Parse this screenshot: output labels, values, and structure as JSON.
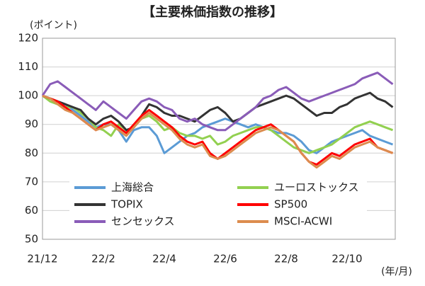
{
  "chart_data": {
    "type": "line",
    "title": "【主要株価指数の推移】",
    "y_label": "(ポイント)",
    "x_label": "(年/月)",
    "categories": [
      "21/12",
      null,
      null,
      null,
      null,
      null,
      null,
      null,
      "22/2",
      null,
      null,
      null,
      null,
      null,
      null,
      null,
      "22/4",
      null,
      null,
      null,
      null,
      null,
      null,
      null,
      "22/6",
      null,
      null,
      null,
      null,
      null,
      null,
      null,
      "22/8",
      null,
      null,
      null,
      null,
      null,
      null,
      null,
      "22/10",
      null,
      null,
      null,
      null,
      null,
      null
    ],
    "ylim": [
      50,
      120
    ],
    "yticks": [
      50,
      60,
      70,
      80,
      90,
      100,
      110,
      120
    ],
    "grid": true,
    "series": [
      {
        "name": "上海総合",
        "color": "#5b9bd5",
        "values": [
          100,
          99,
          98,
          97,
          95,
          93,
          91,
          89,
          90,
          90,
          88,
          84,
          88,
          89,
          89,
          86,
          80,
          82,
          84,
          86,
          87,
          89,
          90,
          91,
          92,
          91,
          90,
          89,
          90,
          89,
          88,
          87,
          87,
          86,
          84,
          81,
          80,
          82,
          84,
          85,
          86,
          87,
          88,
          86,
          85,
          84,
          83
        ]
      },
      {
        "name": "ユーロストックス",
        "color": "#92d050",
        "values": [
          100,
          98,
          97,
          96,
          96,
          94,
          92,
          89,
          88,
          86,
          90,
          88,
          89,
          92,
          93,
          91,
          88,
          89,
          87,
          86,
          86,
          85,
          86,
          83,
          84,
          86,
          87,
          88,
          89,
          89,
          88,
          86,
          84,
          82,
          81,
          80,
          81,
          82,
          83,
          85,
          87,
          89,
          90,
          91,
          90,
          89,
          88
        ]
      },
      {
        "name": "TOPIX",
        "color": "#333333",
        "values": [
          100,
          99,
          98,
          97,
          96,
          95,
          92,
          90,
          92,
          93,
          91,
          88,
          89,
          93,
          97,
          96,
          94,
          93,
          93,
          92,
          91,
          93,
          95,
          96,
          94,
          91,
          92,
          94,
          96,
          97,
          98,
          99,
          100,
          99,
          97,
          95,
          93,
          94,
          94,
          96,
          97,
          99,
          100,
          101,
          99,
          98,
          96
        ]
      },
      {
        "name": "SP500",
        "color": "#ff0000",
        "values": [
          100,
          99,
          98,
          96,
          94,
          92,
          90,
          88,
          90,
          91,
          89,
          87,
          90,
          93,
          95,
          93,
          91,
          89,
          86,
          84,
          83,
          84,
          80,
          78,
          80,
          82,
          84,
          86,
          88,
          89,
          90,
          88,
          86,
          84,
          80,
          77,
          76,
          78,
          80,
          79,
          81,
          83,
          84,
          85,
          82,
          81,
          80
        ]
      },
      {
        "name": "センセックス",
        "color": "#8a5cb8",
        "values": [
          100,
          104,
          105,
          103,
          101,
          99,
          97,
          95,
          98,
          96,
          94,
          92,
          95,
          98,
          99,
          98,
          96,
          95,
          92,
          91,
          92,
          90,
          89,
          88,
          88,
          90,
          92,
          94,
          96,
          99,
          100,
          102,
          103,
          101,
          99,
          98,
          99,
          100,
          101,
          102,
          103,
          104,
          106,
          107,
          108,
          106,
          104
        ]
      },
      {
        "name": "MSCI-ACWI",
        "color": "#dc8c4e",
        "values": [
          100,
          99,
          97,
          95,
          94,
          92,
          90,
          88,
          89,
          90,
          88,
          86,
          89,
          92,
          94,
          92,
          90,
          88,
          85,
          83,
          82,
          83,
          79,
          78,
          79,
          81,
          83,
          85,
          87,
          88,
          89,
          88,
          86,
          84,
          80,
          77,
          75,
          77,
          79,
          78,
          80,
          82,
          83,
          84,
          82,
          81,
          80
        ]
      }
    ]
  }
}
